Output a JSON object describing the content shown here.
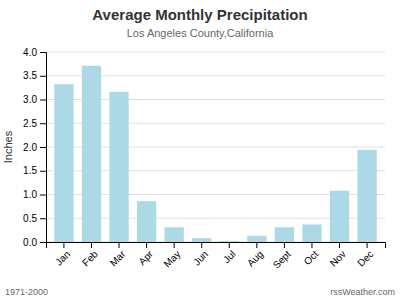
{
  "chart_data": {
    "type": "bar",
    "title": "Average Monthly Precipitation",
    "subtitle": "Los Angeles County,California",
    "y_label": "Inches",
    "annotations": [
      "1971-2000",
      "rssWeather.com"
    ],
    "categories": [
      "Jan",
      "Feb",
      "Mar",
      "Apr",
      "May",
      "Jun",
      "Jul",
      "Aug",
      "Sept",
      "Oct",
      "Nov",
      "Dec"
    ],
    "values": [
      3.32,
      3.71,
      3.16,
      0.86,
      0.31,
      0.08,
      0.02,
      0.13,
      0.31,
      0.37,
      1.08,
      1.94
    ],
    "color": "#add8e6",
    "ylim": [
      0,
      4.0
    ],
    "yticks": [
      {
        "value": 0.0,
        "label": "0.0"
      },
      0.5,
      {
        "value": 1.0,
        "label": "1.0"
      },
      1.5,
      {
        "value": 2.0,
        "label": "2.0"
      },
      2.5,
      {
        "value": 3.0,
        "label": "3.0"
      },
      3.5,
      {
        "value": 4.0,
        "label": "4.0"
      }
    ],
    "grid": true
  }
}
